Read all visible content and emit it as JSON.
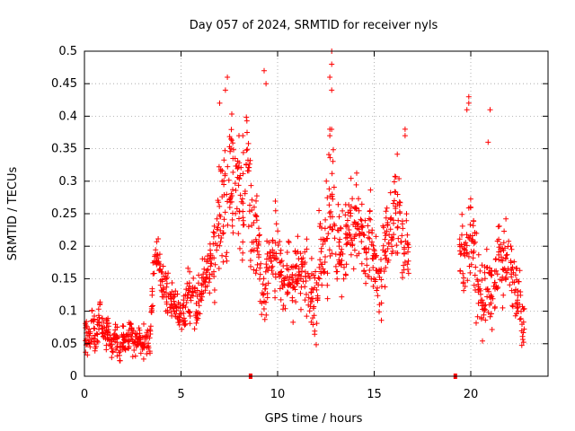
{
  "chart_data": {
    "type": "scatter",
    "title": "Day 057 of 2024, SRMTID for receiver nyls",
    "xlabel": "GPS time / hours",
    "ylabel": "SRMTID / TECUs",
    "xlim": [
      0,
      24
    ],
    "ylim": [
      0,
      0.5
    ],
    "x_ticks": [
      0,
      5,
      10,
      15,
      20
    ],
    "x_tick_labels": [
      "0",
      "5",
      "10",
      "15",
      "20"
    ],
    "y_ticks": [
      0,
      0.05,
      0.1,
      0.15,
      0.2,
      0.25,
      0.3,
      0.35,
      0.4,
      0.45,
      0.5
    ],
    "y_tick_labels": [
      "0",
      "0.05",
      "0.1",
      "0.15",
      "0.2",
      "0.25",
      "0.3",
      "0.35",
      "0.4",
      "0.45",
      "0.5"
    ],
    "grid": true,
    "marker": "+",
    "color": "#ff0000",
    "series": [
      {
        "name": "SRMTID",
        "x": [
          0.0,
          0.2,
          0.4,
          0.6,
          0.8,
          1.0,
          1.2,
          1.4,
          1.6,
          1.8,
          2.0,
          2.2,
          2.4,
          2.6,
          2.8,
          3.0,
          3.2,
          3.4,
          3.6,
          3.8,
          4.0,
          4.2,
          4.4,
          4.6,
          4.8,
          5.0,
          5.2,
          5.4,
          5.6,
          5.8,
          6.0,
          6.2,
          6.4,
          6.6,
          6.8,
          7.0,
          7.2,
          7.4,
          7.6,
          7.8,
          8.0,
          8.2,
          8.4,
          8.6,
          8.8,
          9.0,
          9.2,
          9.4,
          9.6,
          9.8,
          10.0,
          10.2,
          10.4,
          10.6,
          10.8,
          11.0,
          11.2,
          11.4,
          11.6,
          11.8,
          12.0,
          12.2,
          12.4,
          12.6,
          12.8,
          13.0,
          13.2,
          13.4,
          13.6,
          13.8,
          14.0,
          14.2,
          14.4,
          14.6,
          14.8,
          15.0,
          15.2,
          15.4,
          15.6,
          15.8,
          16.0,
          16.2,
          16.4,
          16.6,
          16.8,
          19.4,
          19.6,
          19.8,
          20.0,
          20.2,
          20.4,
          20.6,
          20.8,
          21.0,
          21.2,
          21.4,
          21.6,
          21.8,
          22.0,
          22.2,
          22.4,
          22.6,
          22.8
        ],
        "y": [
          0.07,
          0.06,
          0.08,
          0.05,
          0.1,
          0.06,
          0.07,
          0.05,
          0.06,
          0.04,
          0.06,
          0.05,
          0.07,
          0.05,
          0.06,
          0.05,
          0.06,
          0.06,
          0.17,
          0.19,
          0.15,
          0.13,
          0.12,
          0.11,
          0.1,
          0.09,
          0.1,
          0.12,
          0.13,
          0.11,
          0.12,
          0.14,
          0.15,
          0.18,
          0.2,
          0.24,
          0.27,
          0.26,
          0.3,
          0.32,
          0.28,
          0.25,
          0.35,
          0.24,
          0.22,
          0.2,
          0.14,
          0.13,
          0.18,
          0.2,
          0.2,
          0.15,
          0.14,
          0.16,
          0.13,
          0.17,
          0.15,
          0.16,
          0.14,
          0.12,
          0.1,
          0.2,
          0.18,
          0.24,
          0.29,
          0.2,
          0.19,
          0.17,
          0.2,
          0.22,
          0.23,
          0.25,
          0.2,
          0.18,
          0.22,
          0.17,
          0.14,
          0.15,
          0.2,
          0.22,
          0.25,
          0.27,
          0.22,
          0.19,
          0.21,
          0.21,
          0.17,
          0.2,
          0.22,
          0.19,
          0.14,
          0.11,
          0.13,
          0.14,
          0.12,
          0.18,
          0.16,
          0.17,
          0.16,
          0.14,
          0.12,
          0.1,
          0.08
        ],
        "spread": [
          0.02,
          0.02,
          0.02,
          0.02,
          0.03,
          0.02,
          0.02,
          0.02,
          0.02,
          0.02,
          0.02,
          0.02,
          0.02,
          0.02,
          0.02,
          0.02,
          0.02,
          0.02,
          0.03,
          0.02,
          0.03,
          0.03,
          0.03,
          0.02,
          0.02,
          0.02,
          0.03,
          0.03,
          0.03,
          0.03,
          0.03,
          0.04,
          0.04,
          0.05,
          0.06,
          0.06,
          0.08,
          0.08,
          0.08,
          0.07,
          0.07,
          0.07,
          0.05,
          0.07,
          0.06,
          0.06,
          0.04,
          0.04,
          0.05,
          0.06,
          0.05,
          0.04,
          0.04,
          0.04,
          0.04,
          0.04,
          0.04,
          0.05,
          0.05,
          0.05,
          0.04,
          0.06,
          0.06,
          0.09,
          0.1,
          0.06,
          0.06,
          0.06,
          0.06,
          0.06,
          0.05,
          0.05,
          0.05,
          0.05,
          0.05,
          0.05,
          0.04,
          0.05,
          0.06,
          0.06,
          0.06,
          0.06,
          0.05,
          0.05,
          0.05,
          0.04,
          0.05,
          0.06,
          0.07,
          0.06,
          0.05,
          0.05,
          0.05,
          0.05,
          0.05,
          0.06,
          0.06,
          0.05,
          0.05,
          0.05,
          0.04,
          0.04,
          0.03
        ],
        "peaks": [
          [
            7.0,
            0.42
          ],
          [
            7.4,
            0.46
          ],
          [
            7.3,
            0.44
          ],
          [
            8.0,
            0.37
          ],
          [
            8.2,
            0.37
          ],
          [
            9.3,
            0.47
          ],
          [
            9.4,
            0.45
          ],
          [
            12.8,
            0.5
          ],
          [
            12.8,
            0.48
          ],
          [
            12.7,
            0.46
          ],
          [
            12.8,
            0.44
          ],
          [
            12.7,
            0.38
          ],
          [
            12.7,
            0.37
          ],
          [
            16.6,
            0.38
          ],
          [
            16.6,
            0.37
          ],
          [
            19.9,
            0.43
          ],
          [
            19.9,
            0.42
          ],
          [
            19.8,
            0.41
          ],
          [
            21.0,
            0.41
          ],
          [
            20.9,
            0.36
          ]
        ]
      }
    ]
  }
}
